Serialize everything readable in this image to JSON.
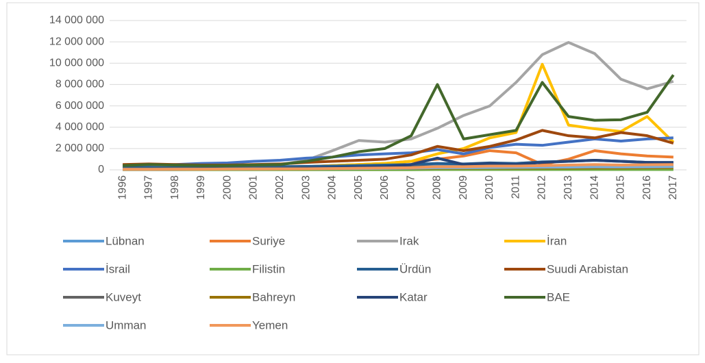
{
  "chart_data": {
    "type": "line",
    "categories": [
      "1996",
      "1997",
      "1998",
      "1999",
      "2000",
      "2001",
      "2002",
      "2003",
      "2004",
      "2005",
      "2006",
      "2007",
      "2008",
      "2009",
      "2010",
      "2011",
      "2012",
      "2013",
      "2014",
      "2015",
      "2016",
      "2017"
    ],
    "ylim": [
      0,
      14000000
    ],
    "yticks": [
      0,
      {
        "value": 2000000,
        "label": "2 000 000"
      },
      {
        "value": 4000000,
        "label": "4 000 000"
      },
      {
        "value": 6000000,
        "label": "6 000 000"
      },
      {
        "value": 8000000,
        "label": "8 000 000"
      },
      {
        "value": 10000000,
        "label": "10 000 000"
      },
      {
        "value": 12000000,
        "label": "12 000 000"
      },
      {
        "value": 14000000,
        "label": "14 000 000"
      }
    ],
    "grid": true,
    "legend": "bottom",
    "series": [
      {
        "name": "Lübnan",
        "color": "#5b9bd5",
        "values": [
          200000,
          200000,
          200000,
          220000,
          230000,
          250000,
          260000,
          280000,
          300000,
          320000,
          330000,
          350000,
          380000,
          360000,
          380000,
          350000,
          370000,
          360000,
          380000,
          350000,
          360000,
          380000
        ]
      },
      {
        "name": "Suriye",
        "color": "#ed7d31",
        "values": [
          100000,
          100000,
          100000,
          100000,
          150000,
          200000,
          200000,
          300000,
          400000,
          500000,
          600000,
          800000,
          1000000,
          1300000,
          1800000,
          1600000,
          500000,
          1000000,
          1800000,
          1500000,
          1300000,
          1200000
        ]
      },
      {
        "name": "Irak",
        "color": "#a5a5a5",
        "values": [
          200000,
          200000,
          200000,
          300000,
          300000,
          400000,
          500000,
          900000,
          1800000,
          2750000,
          2600000,
          2900000,
          3900000,
          5100000,
          6000000,
          8200000,
          10800000,
          11950000,
          10900000,
          8500000,
          7600000,
          8300000
        ]
      },
      {
        "name": "İran",
        "color": "#ffc000",
        "values": [
          100000,
          100000,
          150000,
          150000,
          150000,
          200000,
          250000,
          300000,
          400000,
          500000,
          600000,
          800000,
          1500000,
          2000000,
          3000000,
          3500000,
          9900000,
          4200000,
          3850000,
          3600000,
          5000000,
          2600000
        ]
      },
      {
        "name": "İsrail",
        "color": "#4472c4",
        "values": [
          400000,
          450000,
          500000,
          600000,
          650000,
          800000,
          900000,
          1100000,
          1200000,
          1400000,
          1500000,
          1600000,
          1900000,
          1500000,
          2100000,
          2400000,
          2300000,
          2600000,
          2900000,
          2700000,
          2900000,
          3000000
        ]
      },
      {
        "name": "Filistin",
        "color": "#70ad47",
        "values": [
          20000,
          20000,
          20000,
          20000,
          20000,
          20000,
          20000,
          20000,
          20000,
          20000,
          20000,
          20000,
          30000,
          30000,
          30000,
          30000,
          30000,
          30000,
          30000,
          30000,
          30000,
          30000
        ]
      },
      {
        "name": "Ürdün",
        "color": "#255e91",
        "values": [
          200000,
          200000,
          220000,
          250000,
          250000,
          280000,
          300000,
          330000,
          350000,
          400000,
          450000,
          500000,
          600000,
          550000,
          650000,
          600000,
          750000,
          800000,
          900000,
          800000,
          700000,
          650000
        ]
      },
      {
        "name": "Suudi Arabistan",
        "color": "#9e480e",
        "values": [
          500000,
          550000,
          500000,
          450000,
          450000,
          500000,
          550000,
          700000,
          800000,
          900000,
          1000000,
          1400000,
          2200000,
          1800000,
          2200000,
          2800000,
          3700000,
          3200000,
          3000000,
          3500000,
          3200000,
          2500000
        ]
      },
      {
        "name": "Kuveyt",
        "color": "#636363",
        "values": [
          100000,
          100000,
          120000,
          120000,
          130000,
          150000,
          150000,
          180000,
          200000,
          220000,
          250000,
          280000,
          300000,
          300000,
          320000,
          330000,
          350000,
          350000,
          380000,
          360000,
          380000,
          400000
        ]
      },
      {
        "name": "Bahreyn",
        "color": "#997300",
        "values": [
          50000,
          50000,
          60000,
          60000,
          70000,
          70000,
          80000,
          90000,
          100000,
          110000,
          120000,
          130000,
          150000,
          150000,
          160000,
          160000,
          170000,
          170000,
          180000,
          180000,
          190000,
          200000
        ]
      },
      {
        "name": "Katar",
        "color": "#264478",
        "values": [
          50000,
          50000,
          60000,
          70000,
          80000,
          100000,
          120000,
          150000,
          200000,
          250000,
          300000,
          500000,
          1100000,
          500000,
          600000,
          500000,
          700000,
          800000,
          900000,
          800000,
          700000,
          700000
        ]
      },
      {
        "name": "BAE",
        "color": "#43682b",
        "values": [
          400000,
          500000,
          450000,
          400000,
          400000,
          450000,
          500000,
          800000,
          1200000,
          1700000,
          2000000,
          3200000,
          8000000,
          2900000,
          3300000,
          3700000,
          8200000,
          5000000,
          4650000,
          4700000,
          5400000,
          8900000
        ]
      },
      {
        "name": "Umman",
        "color": "#7cafdd",
        "values": [
          50000,
          50000,
          60000,
          60000,
          70000,
          80000,
          90000,
          100000,
          110000,
          120000,
          140000,
          160000,
          200000,
          200000,
          220000,
          230000,
          250000,
          260000,
          280000,
          270000,
          280000,
          300000
        ]
      },
      {
        "name": "Yemen",
        "color": "#f1975a",
        "values": [
          50000,
          50000,
          60000,
          60000,
          70000,
          80000,
          90000,
          100000,
          120000,
          150000,
          180000,
          200000,
          300000,
          300000,
          350000,
          350000,
          400000,
          450000,
          500000,
          450000,
          480000,
          500000
        ]
      }
    ]
  }
}
